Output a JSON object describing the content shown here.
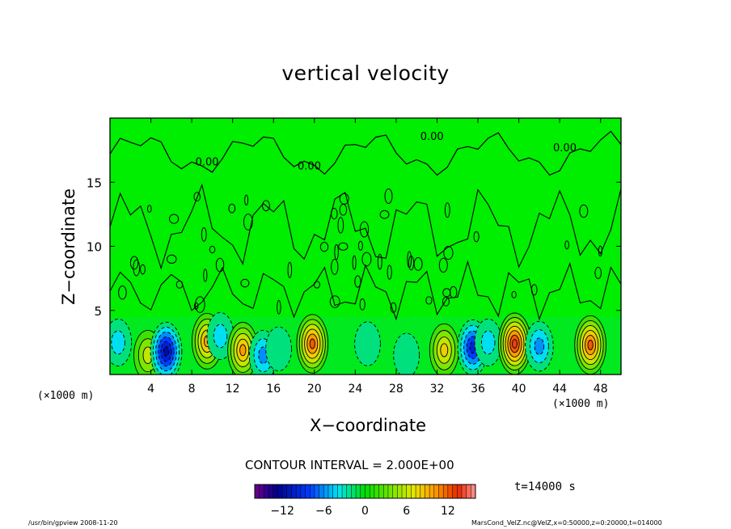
{
  "chart_data": {
    "type": "heatmap",
    "title": "vertical velocity",
    "xlabel": "X−coordinate",
    "ylabel": "Z−coordinate",
    "x_unit": "(×1000 m)",
    "y_unit": "(×1000 m)",
    "xlim": [
      0,
      50
    ],
    "ylim": [
      0,
      20
    ],
    "x_ticks": [
      4,
      8,
      12,
      16,
      20,
      24,
      28,
      32,
      36,
      40,
      44,
      48
    ],
    "y_ticks": [
      5,
      10,
      15
    ],
    "contour_labels": [
      "0.00",
      "0.00",
      "0.00",
      "0.00"
    ],
    "contour_interval": "CONTOUR INTERVAL = 2.000E+00",
    "colorbar": {
      "range": [
        -16,
        16
      ],
      "ticks": [
        "−12",
        "−6",
        "0",
        "6",
        "12"
      ],
      "tick_values": [
        -12,
        -6,
        0,
        6,
        12
      ]
    },
    "cells": [
      {
        "x": 0.8,
        "z": 2.5,
        "w": -4
      },
      {
        "x": 3.7,
        "z": 1.5,
        "w": 6
      },
      {
        "x": 5.5,
        "z": 1.8,
        "w": -12
      },
      {
        "x": 9.5,
        "z": 2.6,
        "w": 10
      },
      {
        "x": 10.8,
        "z": 3.0,
        "w": -4
      },
      {
        "x": 13.0,
        "z": 1.9,
        "w": 10
      },
      {
        "x": 15.0,
        "z": 1.5,
        "w": -6
      },
      {
        "x": 16.5,
        "z": 2.0,
        "w": -2
      },
      {
        "x": 19.8,
        "z": 2.4,
        "w": 12
      },
      {
        "x": 25.2,
        "z": 2.4,
        "w": -2
      },
      {
        "x": 29.0,
        "z": 1.5,
        "w": -2
      },
      {
        "x": 32.7,
        "z": 1.9,
        "w": 8
      },
      {
        "x": 35.5,
        "z": 2.1,
        "w": -10
      },
      {
        "x": 37.0,
        "z": 2.5,
        "w": -4
      },
      {
        "x": 39.6,
        "z": 2.4,
        "w": 14
      },
      {
        "x": 42.0,
        "z": 2.2,
        "w": -6
      },
      {
        "x": 47.0,
        "z": 2.3,
        "w": 12
      }
    ]
  },
  "time_label": "t=14000 s",
  "footer_left": "/usr/bin/gpview   2008-11-20",
  "footer_right": "MarsCond_VelZ.nc@VelZ,x=0:50000,z=0:20000,t=014000",
  "colors": {
    "background_field": "#00ee00",
    "frame": "#000000"
  }
}
